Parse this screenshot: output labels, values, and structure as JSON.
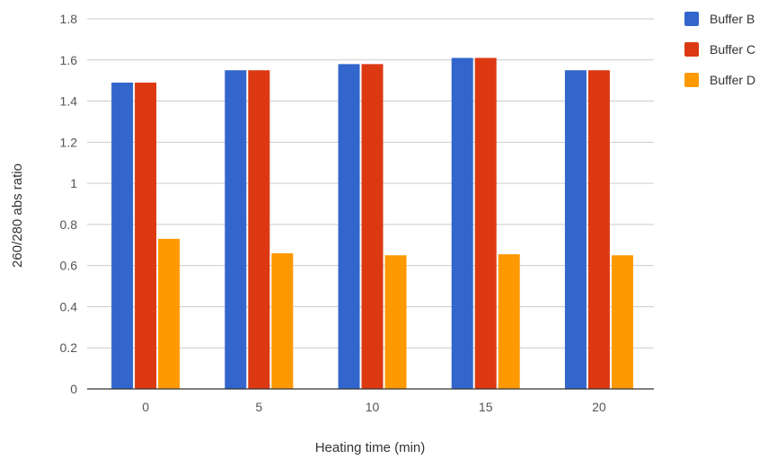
{
  "chart_data": {
    "type": "bar",
    "categories": [
      "0",
      "5",
      "10",
      "15",
      "20"
    ],
    "series": [
      {
        "name": "Buffer B",
        "color": "#3366cc",
        "values": [
          1.49,
          1.55,
          1.58,
          1.61,
          1.55
        ]
      },
      {
        "name": "Buffer C",
        "color": "#dc3912",
        "values": [
          1.49,
          1.55,
          1.58,
          1.61,
          1.55
        ]
      },
      {
        "name": "Buffer D",
        "color": "#ff9900",
        "values": [
          0.73,
          0.66,
          0.65,
          0.655,
          0.65
        ]
      }
    ],
    "xlabel": "Heating time (min)",
    "ylabel": "260/280 abs ratio",
    "ylim": [
      0,
      1.8
    ],
    "yticks": [
      0,
      0.2,
      0.4,
      0.6,
      0.8,
      1,
      1.2,
      1.4,
      1.6,
      1.8
    ],
    "ytick_labels": [
      "0",
      "0.2",
      "0.4",
      "0.6",
      "0.8",
      "1",
      "1.2",
      "1.4",
      "1.6",
      "1.8"
    ],
    "grid": true,
    "legend": "right"
  }
}
